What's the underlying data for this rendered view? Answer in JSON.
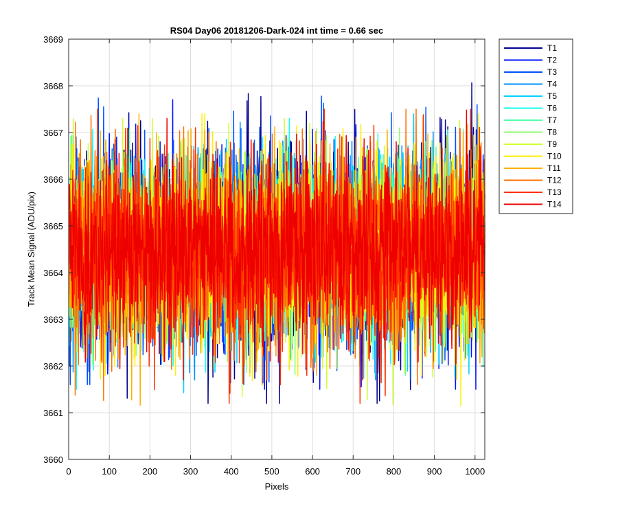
{
  "chart_data": {
    "type": "line",
    "title": "RS04 Day06 20181206-Dark-024 int time = 0.66 sec",
    "xlabel": "Pixels",
    "ylabel": "Track Mean Signal (ADU/pix)",
    "xlim": [
      0,
      1024
    ],
    "ylim": [
      3660,
      3669
    ],
    "xticks": [
      0,
      100,
      200,
      300,
      400,
      500,
      600,
      700,
      800,
      900,
      1000
    ],
    "yticks": [
      3660,
      3661,
      3662,
      3663,
      3664,
      3665,
      3666,
      3667,
      3668,
      3669
    ],
    "grid": true,
    "legend_position": "outside-top-right",
    "n_points": 1024,
    "series": [
      {
        "name": "T1",
        "color": "#00008f",
        "mean": 3664.5,
        "min": 3661.2,
        "max": 3668.2
      },
      {
        "name": "T2",
        "color": "#0010ff",
        "mean": 3664.5,
        "min": 3661.5,
        "max": 3667.9
      },
      {
        "name": "T3",
        "color": "#0050ff",
        "mean": 3664.5,
        "min": 3661.6,
        "max": 3668.1
      },
      {
        "name": "T4",
        "color": "#0090ff",
        "mean": 3664.5,
        "min": 3661.7,
        "max": 3667.5
      },
      {
        "name": "T5",
        "color": "#00cfff",
        "mean": 3664.5,
        "min": 3661.4,
        "max": 3667.4
      },
      {
        "name": "T6",
        "color": "#10ffef",
        "mean": 3664.5,
        "min": 3661.0,
        "max": 3667.3
      },
      {
        "name": "T7",
        "color": "#50ffaf",
        "mean": 3664.5,
        "min": 3661.8,
        "max": 3667.2
      },
      {
        "name": "T8",
        "color": "#8fff70",
        "mean": 3664.5,
        "min": 3661.8,
        "max": 3667.1
      },
      {
        "name": "T9",
        "color": "#cfff30",
        "mean": 3664.5,
        "min": 3660.6,
        "max": 3667.3
      },
      {
        "name": "T10",
        "color": "#ffef00",
        "mean": 3664.5,
        "min": 3660.9,
        "max": 3667.4
      },
      {
        "name": "T11",
        "color": "#ffaf00",
        "mean": 3664.5,
        "min": 3661.0,
        "max": 3667.4
      },
      {
        "name": "T12",
        "color": "#ff7000",
        "mean": 3664.5,
        "min": 3661.2,
        "max": 3667.5
      },
      {
        "name": "T13",
        "color": "#ff3000",
        "mean": 3664.5,
        "min": 3661.2,
        "max": 3667.5
      },
      {
        "name": "T14",
        "color": "#ef0000",
        "mean": 3664.5,
        "min": 3661.7,
        "max": 3667.7
      }
    ]
  }
}
